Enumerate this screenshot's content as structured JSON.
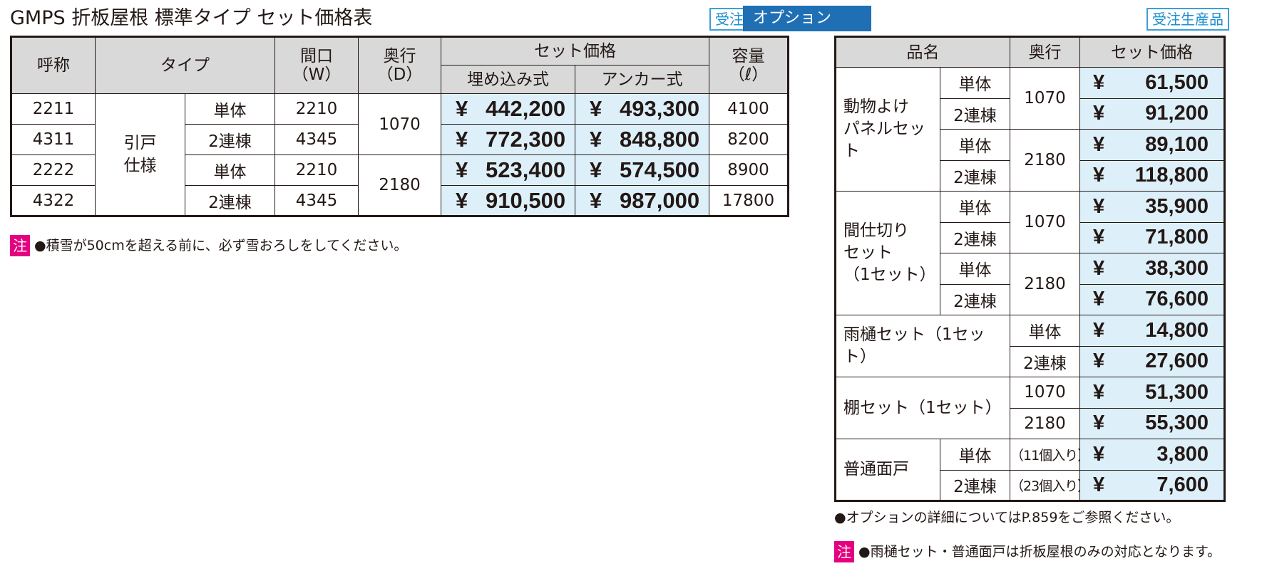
{
  "main": {
    "title": "GMPS 折板屋根 標準タイプ セット価格表",
    "badge": "受注生産品",
    "headers": {
      "name": "呼称",
      "type": "タイプ",
      "width": "間口\n（W）",
      "depth": "奥行\n（D）",
      "set_price": "セット価格",
      "embedded": "埋め込み式",
      "anchor": "アンカー式",
      "capacity": "容量\n（ℓ）"
    },
    "type_group": "引戸\n仕様",
    "depth_groups": [
      "1070",
      "2180"
    ],
    "rows": [
      {
        "name": "2211",
        "sub": "単体",
        "width": "2210",
        "embedded": "442,200",
        "anchor": "493,300",
        "capacity": "4100"
      },
      {
        "name": "4311",
        "sub": "2連棟",
        "width": "4345",
        "embedded": "772,300",
        "anchor": "848,800",
        "capacity": "8200"
      },
      {
        "name": "2222",
        "sub": "単体",
        "width": "2210",
        "embedded": "523,400",
        "anchor": "574,500",
        "capacity": "8900"
      },
      {
        "name": "4322",
        "sub": "2連棟",
        "width": "4345",
        "embedded": "910,500",
        "anchor": "987,000",
        "capacity": "17800"
      }
    ],
    "yen": "¥",
    "note_mark": "注",
    "note": "●積雪が50cmを超える前に、必ず雪おろしをしてください。"
  },
  "option": {
    "label": "オプション",
    "badge": "受注生産品",
    "headers": {
      "item": "品名",
      "depth": "奥行",
      "set_price": "セット価格"
    },
    "animal": {
      "name": "動物よけ\nパネルセット",
      "rows": [
        {
          "sub": "単体",
          "depth": "1070",
          "price": "61,500"
        },
        {
          "sub": "2連棟",
          "price": "91,200"
        },
        {
          "sub": "単体",
          "depth": "2180",
          "price": "89,100"
        },
        {
          "sub": "2連棟",
          "price": "118,800"
        }
      ]
    },
    "partition": {
      "name": "間仕切り\nセット\n（1セット）",
      "rows": [
        {
          "sub": "単体",
          "depth": "1070",
          "price": "35,900"
        },
        {
          "sub": "2連棟",
          "price": "71,800"
        },
        {
          "sub": "単体",
          "depth": "2180",
          "price": "38,300"
        },
        {
          "sub": "2連棟",
          "price": "76,600"
        }
      ]
    },
    "gutter": {
      "name": "雨樋セット（1セット）",
      "rows": [
        {
          "sub": "単体",
          "price": "14,800"
        },
        {
          "sub": "2連棟",
          "price": "27,600"
        }
      ]
    },
    "shelf": {
      "name": "棚セット（1セット）",
      "rows": [
        {
          "sub": "1070",
          "price": "51,300"
        },
        {
          "sub": "2180",
          "price": "55,300"
        }
      ]
    },
    "door": {
      "name": "普通面戸",
      "rows": [
        {
          "sub": "単体",
          "qty": "（11個入り）",
          "price": "3,800"
        },
        {
          "sub": "2連棟",
          "qty": "（23個入り）",
          "price": "7,600"
        }
      ]
    },
    "yen": "¥",
    "note1": "●オプションの詳細についてはP.859をご参照ください。",
    "note_mark": "注",
    "note2": "●雨樋セット・普通面戸は折板屋根のみの対応となります。"
  }
}
